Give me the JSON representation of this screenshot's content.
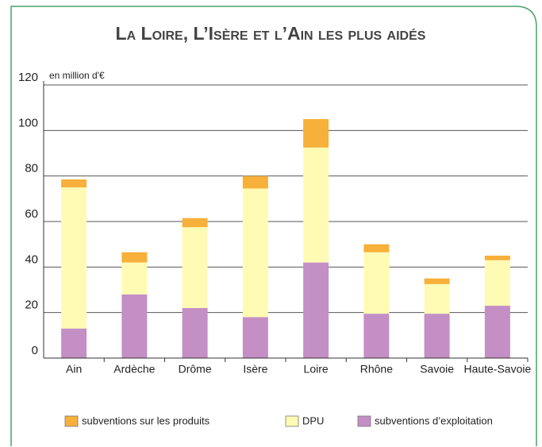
{
  "chart_data": {
    "type": "stacked_bar",
    "title": "La Loire, L’Isère et l’Ain les plus aidés",
    "y_label": "en million d'€",
    "categories": [
      "Ain",
      "Ardèche",
      "Drôme",
      "Isère",
      "Loire",
      "Rhône",
      "Savoie",
      "Haute-Savoie"
    ],
    "series": [
      {
        "name": "subventions sur les produits",
        "color": "#f7b03a",
        "values": [
          3.5,
          4.5,
          4,
          5.5,
          12.5,
          3.5,
          2.5,
          2
        ]
      },
      {
        "name": "DPU",
        "color": "#fffbb4",
        "values": [
          62,
          14,
          35.5,
          56.5,
          50.5,
          27,
          13,
          20
        ]
      },
      {
        "name": "subventions d’exploitation",
        "color": "#c48fc4",
        "values": [
          13,
          28,
          22,
          18,
          42,
          19.5,
          19.5,
          23
        ]
      }
    ],
    "ylim": [
      0,
      120
    ],
    "yticks": [
      0,
      20,
      40,
      60,
      80,
      100,
      120
    ],
    "grid": true
  }
}
